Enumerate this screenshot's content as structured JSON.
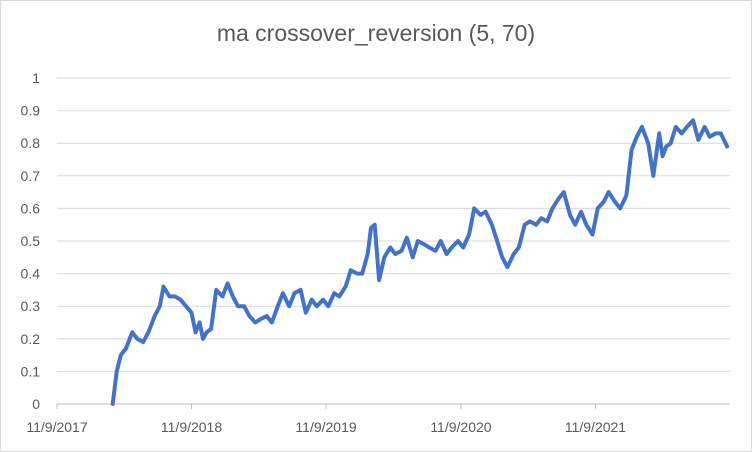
{
  "chart_data": {
    "type": "line",
    "title": "ma crossover_reversion  (5, 70)",
    "xlabel": "",
    "ylabel": "",
    "x_tick_labels": [
      "11/9/2017",
      "11/9/2018",
      "11/9/2019",
      "11/9/2020",
      "11/9/2021"
    ],
    "x_tick_dates": [
      "2017-11-09",
      "2018-11-09",
      "2019-11-09",
      "2020-11-09",
      "2021-11-09"
    ],
    "x_range": [
      "2017-11-09",
      "2022-11-09"
    ],
    "y_tick_labels": [
      "0",
      "0.1",
      "0.2",
      "0.3",
      "0.4",
      "0.5",
      "0.6",
      "0.7",
      "0.8",
      "0.9",
      "1"
    ],
    "ylim": [
      0,
      1
    ],
    "grid": "horizontal",
    "line_color": "#4472c4",
    "series": [
      {
        "x": [
          "2018-04-09",
          "2018-04-20",
          "2018-05-01",
          "2018-05-15",
          "2018-06-01",
          "2018-06-15",
          "2018-07-01",
          "2018-07-15",
          "2018-08-01",
          "2018-08-15",
          "2018-08-25",
          "2018-09-10",
          "2018-09-25",
          "2018-10-10",
          "2018-10-25",
          "2018-11-09",
          "2018-11-20",
          "2018-12-01",
          "2018-12-10",
          "2018-12-20",
          "2019-01-01",
          "2019-01-15",
          "2019-02-01",
          "2019-02-15",
          "2019-03-01",
          "2019-03-15",
          "2019-04-01",
          "2019-04-15",
          "2019-05-01",
          "2019-05-15",
          "2019-06-01",
          "2019-06-15",
          "2019-07-01",
          "2019-07-15",
          "2019-08-01",
          "2019-08-15",
          "2019-09-01",
          "2019-09-15",
          "2019-10-01",
          "2019-10-15",
          "2019-11-01",
          "2019-11-15",
          "2019-12-01",
          "2019-12-15",
          "2020-01-01",
          "2020-01-15",
          "2020-02-01",
          "2020-02-15",
          "2020-03-01",
          "2020-03-10",
          "2020-03-20",
          "2020-04-01",
          "2020-04-15",
          "2020-05-01",
          "2020-05-15",
          "2020-06-01",
          "2020-06-15",
          "2020-07-01",
          "2020-07-15",
          "2020-08-01",
          "2020-08-15",
          "2020-09-01",
          "2020-09-15",
          "2020-10-01",
          "2020-10-15",
          "2020-11-01",
          "2020-11-15",
          "2020-12-01",
          "2020-12-15",
          "2021-01-01",
          "2021-01-15",
          "2021-02-01",
          "2021-02-15",
          "2021-03-01",
          "2021-03-15",
          "2021-04-01",
          "2021-04-15",
          "2021-05-01",
          "2021-05-15",
          "2021-06-01",
          "2021-06-15",
          "2021-07-01",
          "2021-07-15",
          "2021-08-01",
          "2021-08-15",
          "2021-09-01",
          "2021-09-15",
          "2021-10-01",
          "2021-10-15",
          "2021-11-01",
          "2021-11-15",
          "2021-12-01",
          "2021-12-15",
          "2022-01-01",
          "2022-01-15",
          "2022-02-01",
          "2022-02-15",
          "2022-03-01",
          "2022-03-15",
          "2022-04-01",
          "2022-04-15",
          "2022-05-01",
          "2022-05-10",
          "2022-05-20",
          "2022-06-01",
          "2022-06-15",
          "2022-07-01",
          "2022-07-15",
          "2022-08-01",
          "2022-08-15",
          "2022-09-01",
          "2022-09-15",
          "2022-10-01",
          "2022-10-15",
          "2022-11-01"
        ],
        "y": [
          0.0,
          0.1,
          0.15,
          0.17,
          0.22,
          0.2,
          0.19,
          0.22,
          0.27,
          0.3,
          0.36,
          0.33,
          0.33,
          0.32,
          0.3,
          0.28,
          0.22,
          0.25,
          0.2,
          0.22,
          0.23,
          0.35,
          0.33,
          0.37,
          0.33,
          0.3,
          0.3,
          0.27,
          0.25,
          0.26,
          0.27,
          0.25,
          0.3,
          0.34,
          0.3,
          0.34,
          0.35,
          0.28,
          0.32,
          0.3,
          0.32,
          0.3,
          0.34,
          0.33,
          0.36,
          0.41,
          0.4,
          0.4,
          0.46,
          0.54,
          0.55,
          0.38,
          0.45,
          0.48,
          0.46,
          0.47,
          0.51,
          0.45,
          0.5,
          0.49,
          0.48,
          0.47,
          0.5,
          0.46,
          0.48,
          0.5,
          0.48,
          0.52,
          0.6,
          0.58,
          0.59,
          0.55,
          0.5,
          0.45,
          0.42,
          0.46,
          0.48,
          0.55,
          0.56,
          0.55,
          0.57,
          0.56,
          0.6,
          0.63,
          0.65,
          0.58,
          0.55,
          0.59,
          0.55,
          0.52,
          0.6,
          0.62,
          0.65,
          0.62,
          0.6,
          0.64,
          0.78,
          0.82,
          0.85,
          0.8,
          0.7,
          0.83,
          0.76,
          0.79,
          0.8,
          0.85,
          0.83,
          0.85,
          0.87,
          0.81,
          0.85,
          0.82,
          0.83,
          0.83,
          0.79
        ]
      }
    ]
  }
}
